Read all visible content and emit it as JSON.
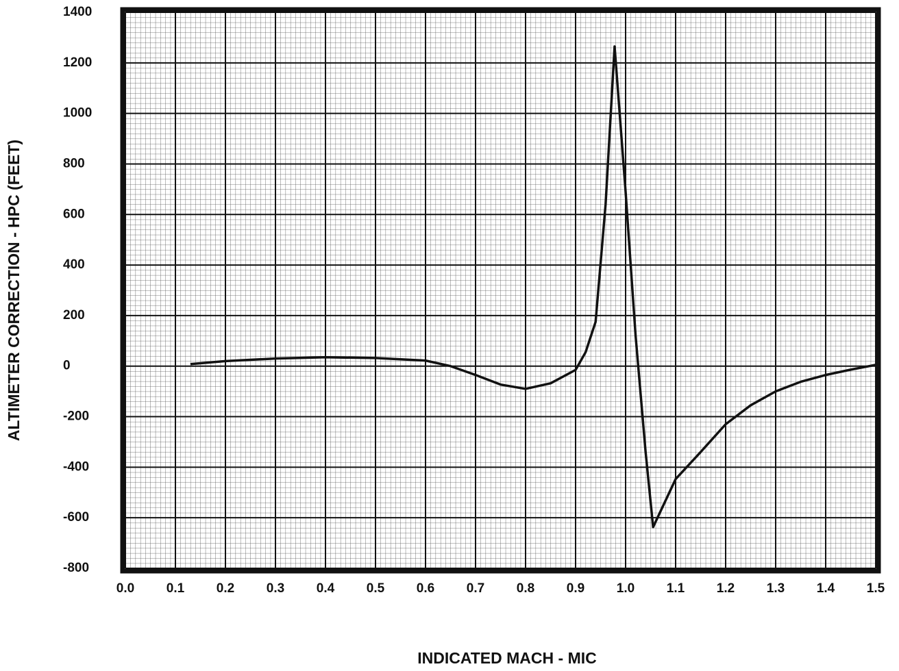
{
  "chart_data": {
    "type": "line",
    "x_label": "INDICATED MACH - MIC",
    "y_label": "ALTIMETER CORRECTION - HPC (FEET)",
    "x": [
      0.13,
      0.2,
      0.3,
      0.4,
      0.5,
      0.6,
      0.65,
      0.7,
      0.75,
      0.8,
      0.85,
      0.9,
      0.92,
      0.94,
      0.96,
      0.978,
      1.0,
      1.02,
      1.04,
      1.055,
      1.1,
      1.15,
      1.2,
      1.25,
      1.3,
      1.35,
      1.4,
      1.45,
      1.5
    ],
    "series": [
      {
        "color": "#111111",
        "values": [
          8,
          20,
          30,
          35,
          32,
          22,
          0,
          -35,
          -73,
          -90,
          -68,
          -15,
          55,
          175,
          640,
          1265,
          690,
          120,
          -340,
          -637,
          -447,
          -340,
          -230,
          -155,
          -100,
          -62,
          -35,
          -14,
          5
        ]
      }
    ],
    "xlim": [
      0,
      1.5
    ],
    "xticks": [
      {
        "value": 0,
        "label": "0.0"
      },
      0.1,
      0.2,
      0.3,
      0.4,
      0.5,
      0.6,
      0.7,
      0.8,
      0.9,
      {
        "value": 1,
        "label": "1.0"
      },
      1.1,
      1.2,
      1.3,
      1.4,
      1.5
    ],
    "ylim": [
      -800,
      1400
    ],
    "yticks": [
      -800,
      -600,
      -400,
      -200,
      0,
      200,
      400,
      600,
      800,
      1000,
      1200,
      1400
    ],
    "grid": true
  }
}
